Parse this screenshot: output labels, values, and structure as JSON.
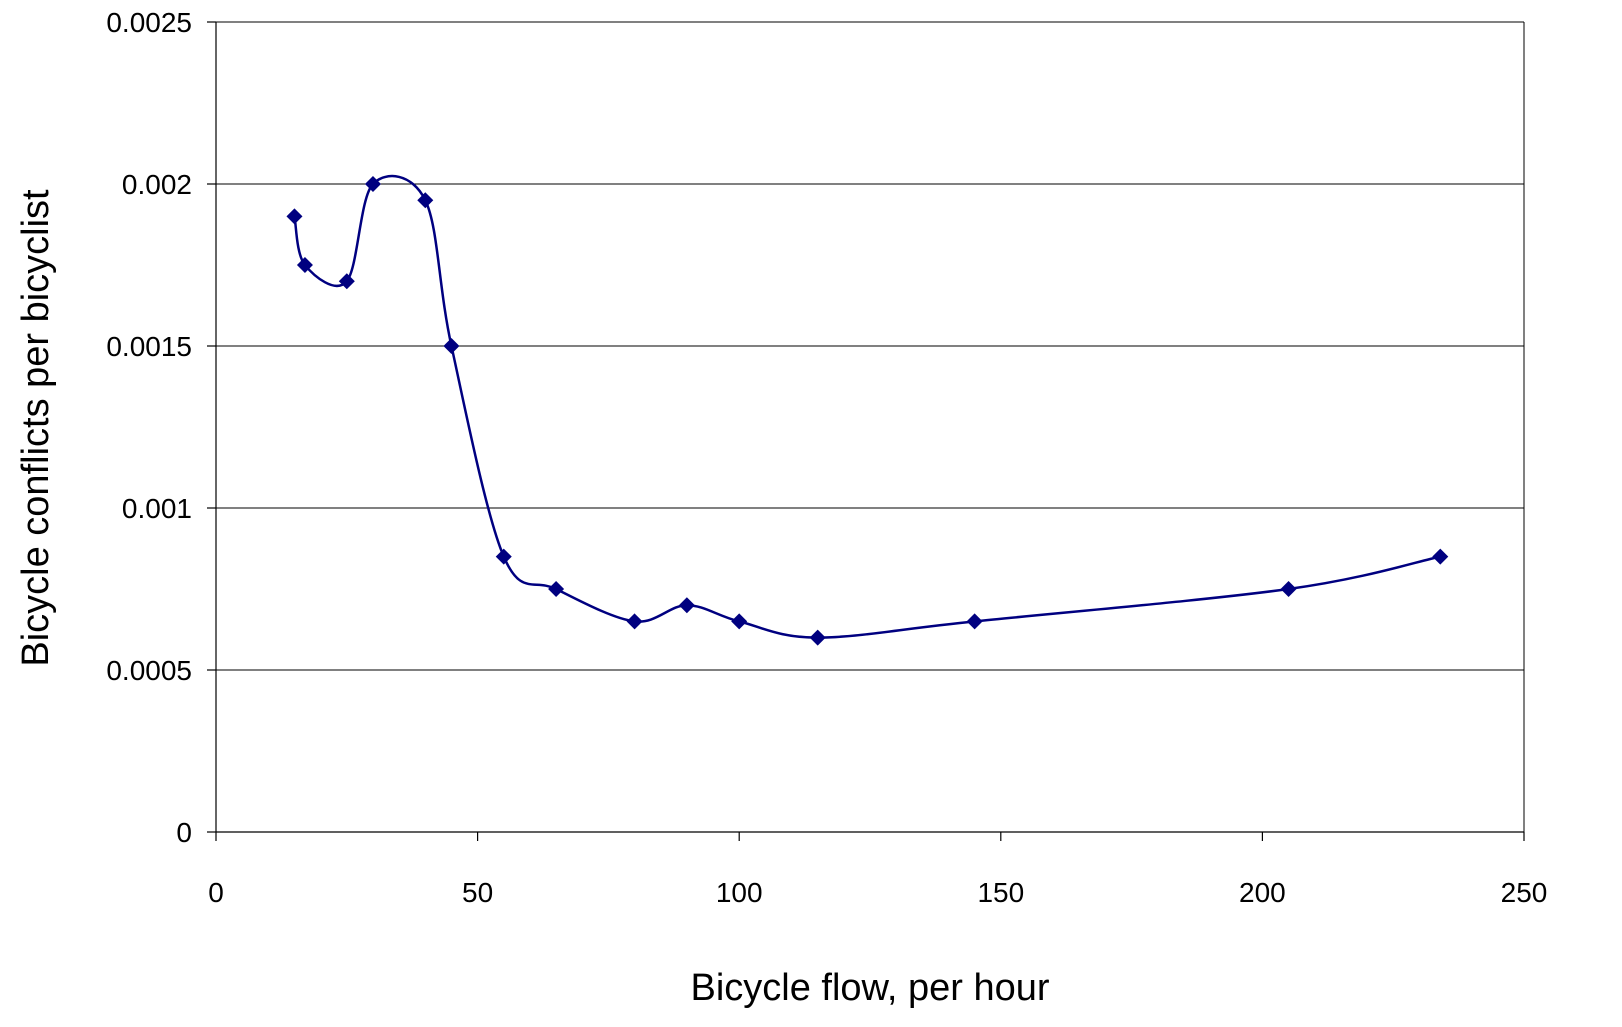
{
  "chart_data": {
    "type": "line",
    "title": "",
    "xlabel": "Bicycle flow, per hour",
    "ylabel": "Bicycle conflicts per bicyclist",
    "xlim": [
      0,
      250
    ],
    "ylim": [
      0,
      0.0025
    ],
    "x_ticks": [
      "0",
      "50",
      "100",
      "150",
      "200",
      "250"
    ],
    "y_ticks": [
      "0",
      "0.0005",
      "0.001",
      "0.0015",
      "0.002",
      "0.0025"
    ],
    "grid": "horizontal",
    "smoothed": true,
    "marker": "diamond",
    "color": "#000080",
    "series": [
      {
        "x": [
          15,
          17,
          25,
          30,
          40,
          45,
          55,
          65,
          80,
          90,
          100,
          115,
          145,
          205,
          234
        ],
        "y": [
          0.0019,
          0.00175,
          0.0017,
          0.002,
          0.00195,
          0.0015,
          0.00085,
          0.00075,
          0.00065,
          0.0007,
          0.00065,
          0.0006,
          0.00065,
          0.00075,
          0.00085
        ]
      }
    ]
  }
}
